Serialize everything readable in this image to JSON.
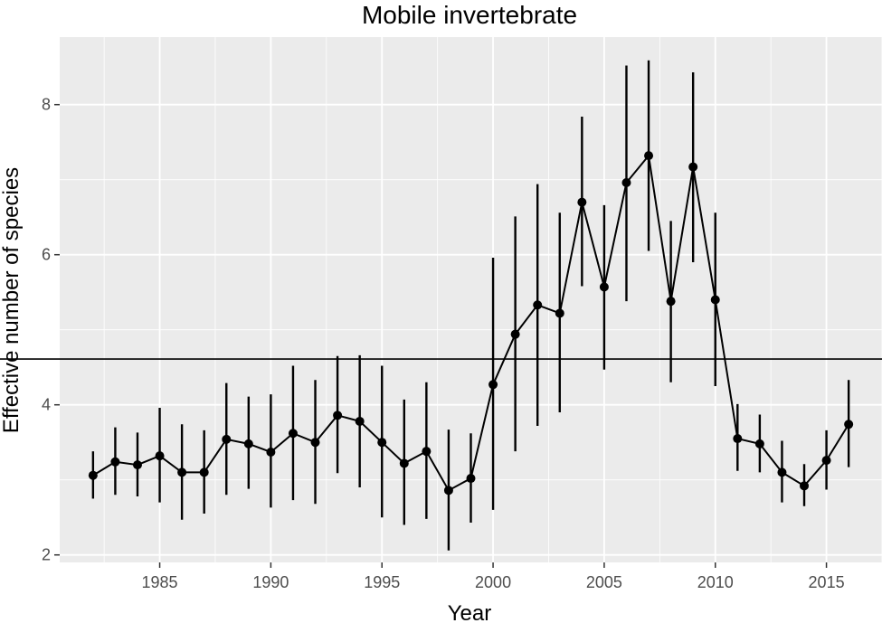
{
  "chart_data": {
    "type": "line",
    "title": "Mobile invertebrate",
    "xlabel": "Year",
    "ylabel": "Effective number of species",
    "xlim": [
      1980.5,
      2017.5
    ],
    "ylim": [
      1.9,
      8.9
    ],
    "xticks": [
      1985,
      1990,
      1995,
      2000,
      2005,
      2010,
      2015
    ],
    "yticks": [
      2,
      4,
      6,
      8
    ],
    "grid": true,
    "reference_line": {
      "y": 4.61
    },
    "series": [
      {
        "x": [
          1982,
          1983,
          1984,
          1985,
          1986,
          1987,
          1988,
          1989,
          1990,
          1991,
          1992,
          1993,
          1994,
          1995,
          1996,
          1997,
          1998,
          1999,
          2000,
          2001,
          2002,
          2003,
          2004,
          2005,
          2006,
          2007,
          2008,
          2009,
          2010,
          2011,
          2012,
          2013,
          2014,
          2015,
          2016
        ],
        "y": [
          3.06,
          3.24,
          3.2,
          3.32,
          3.1,
          3.1,
          3.54,
          3.48,
          3.37,
          3.62,
          3.5,
          3.86,
          3.78,
          3.5,
          3.22,
          3.38,
          2.86,
          3.02,
          4.27,
          4.94,
          5.33,
          5.22,
          6.7,
          5.57,
          6.96,
          7.32,
          5.38,
          7.17,
          5.4,
          3.55,
          3.48,
          3.1,
          2.92,
          3.26,
          3.74
        ],
        "lower": [
          2.75,
          2.8,
          2.78,
          2.7,
          2.47,
          2.55,
          2.8,
          2.88,
          2.63,
          2.73,
          2.68,
          3.09,
          2.9,
          2.5,
          2.4,
          2.48,
          2.06,
          2.43,
          2.6,
          3.38,
          3.72,
          3.9,
          5.58,
          4.47,
          5.38,
          6.05,
          4.3,
          5.9,
          4.25,
          3.12,
          3.1,
          2.7,
          2.65,
          2.87,
          3.17
        ],
        "upper": [
          3.38,
          3.7,
          3.63,
          3.96,
          3.74,
          3.66,
          4.29,
          4.11,
          4.14,
          4.52,
          4.33,
          4.65,
          4.66,
          4.52,
          4.07,
          4.3,
          3.67,
          3.62,
          5.96,
          6.51,
          6.94,
          6.56,
          7.84,
          6.66,
          8.52,
          8.59,
          6.45,
          8.43,
          6.56,
          4.01,
          3.87,
          3.52,
          3.21,
          3.66,
          4.33
        ]
      }
    ]
  }
}
